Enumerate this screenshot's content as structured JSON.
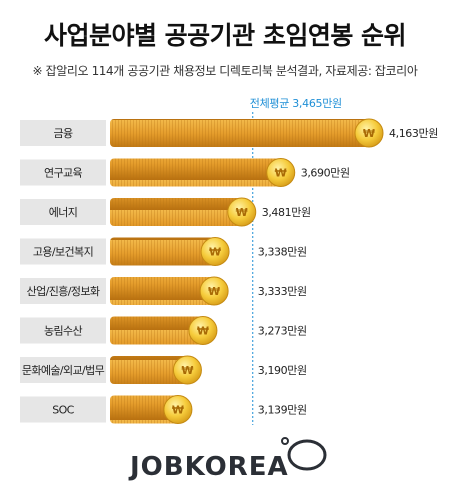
{
  "header": {
    "title": "사업분야별 공공기관 초임연봉 순위",
    "subtitle": "※ 잡알리오 114개 공공기관 채용정보 디렉토리북 분석결과, 자료제공: 잡코리아"
  },
  "brand": {
    "name": "JOBKOREA"
  },
  "chart_data": {
    "type": "bar",
    "orientation": "horizontal",
    "title": "사업분야별 공공기관 초임연봉 순위",
    "categories": [
      "금융",
      "연구교육",
      "에너지",
      "고용/보건복지",
      "산업/진흥/정보화",
      "농림수산",
      "문화예술/외교/법무",
      "SOC"
    ],
    "values": [
      4163,
      3690,
      3481,
      3338,
      3333,
      3273,
      3190,
      3139
    ],
    "value_labels": [
      "4,163만원",
      "3,690만원",
      "3,481만원",
      "3,338만원",
      "3,333만원",
      "3,273만원",
      "3,190만원",
      "3,139만원"
    ],
    "unit": "만원",
    "reference_line": {
      "label": "전체평균 3,465만원",
      "value": 3465
    },
    "xlim": [
      2700,
      4163
    ],
    "grid": false,
    "legend": "none",
    "colors": {
      "bar": "#e39a2a",
      "coin": "#f6cc3c",
      "reference": "#1f8fd6",
      "label_box": "#e6e6e6"
    }
  }
}
